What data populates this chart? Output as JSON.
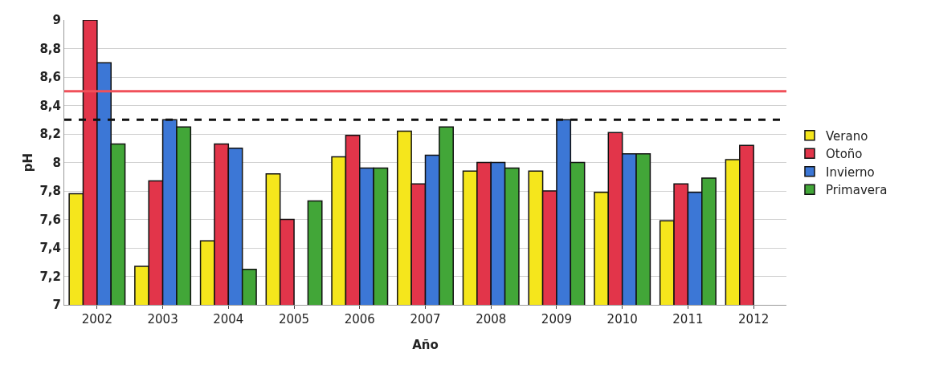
{
  "chart_data": {
    "type": "bar",
    "xlabel": "Año",
    "ylabel": "pH",
    "categories": [
      "2002",
      "2003",
      "2004",
      "2005",
      "2006",
      "2007",
      "2008",
      "2009",
      "2010",
      "2011",
      "2012"
    ],
    "series": [
      {
        "name": "Verano",
        "color": "#f5e61c",
        "values": [
          7.78,
          7.27,
          7.45,
          7.92,
          8.04,
          8.22,
          7.94,
          7.94,
          7.79,
          7.59,
          8.02
        ]
      },
      {
        "name": "Otoño",
        "color": "#e2354a",
        "values": [
          9.0,
          7.87,
          8.13,
          7.6,
          8.19,
          7.85,
          8.0,
          7.8,
          8.21,
          7.85,
          8.12
        ]
      },
      {
        "name": "Invierno",
        "color": "#3c77d6",
        "values": [
          8.7,
          8.3,
          8.1,
          null,
          7.96,
          8.05,
          8.0,
          8.3,
          8.06,
          7.79,
          null
        ]
      },
      {
        "name": "Primavera",
        "color": "#42a638",
        "values": [
          8.13,
          8.25,
          7.25,
          7.73,
          7.96,
          8.25,
          7.96,
          8.0,
          8.06,
          7.89,
          null
        ]
      }
    ],
    "ylim": [
      7,
      9
    ],
    "yticks": [
      {
        "value": 7,
        "label": "7"
      },
      {
        "value": 7.2,
        "label": "7,2"
      },
      {
        "value": 7.4,
        "label": "7,4"
      },
      {
        "value": 7.6,
        "label": "7,6"
      },
      {
        "value": 7.8,
        "label": "7,8"
      },
      {
        "value": 8,
        "label": "8"
      },
      {
        "value": 8.2,
        "label": "8,2"
      },
      {
        "value": 8.4,
        "label": "8,4"
      },
      {
        "value": 8.6,
        "label": "8,6"
      },
      {
        "value": 8.8,
        "label": "8,8"
      },
      {
        "value": 9,
        "label": "9"
      }
    ],
    "ref_lines": [
      {
        "axis": "y",
        "value": 8.5,
        "color": "#f0505a",
        "line_style": "solid"
      },
      {
        "axis": "y",
        "value": 8.3,
        "color": "#111111",
        "line_style": "dashed"
      }
    ],
    "grid": "y",
    "legend": "right"
  }
}
